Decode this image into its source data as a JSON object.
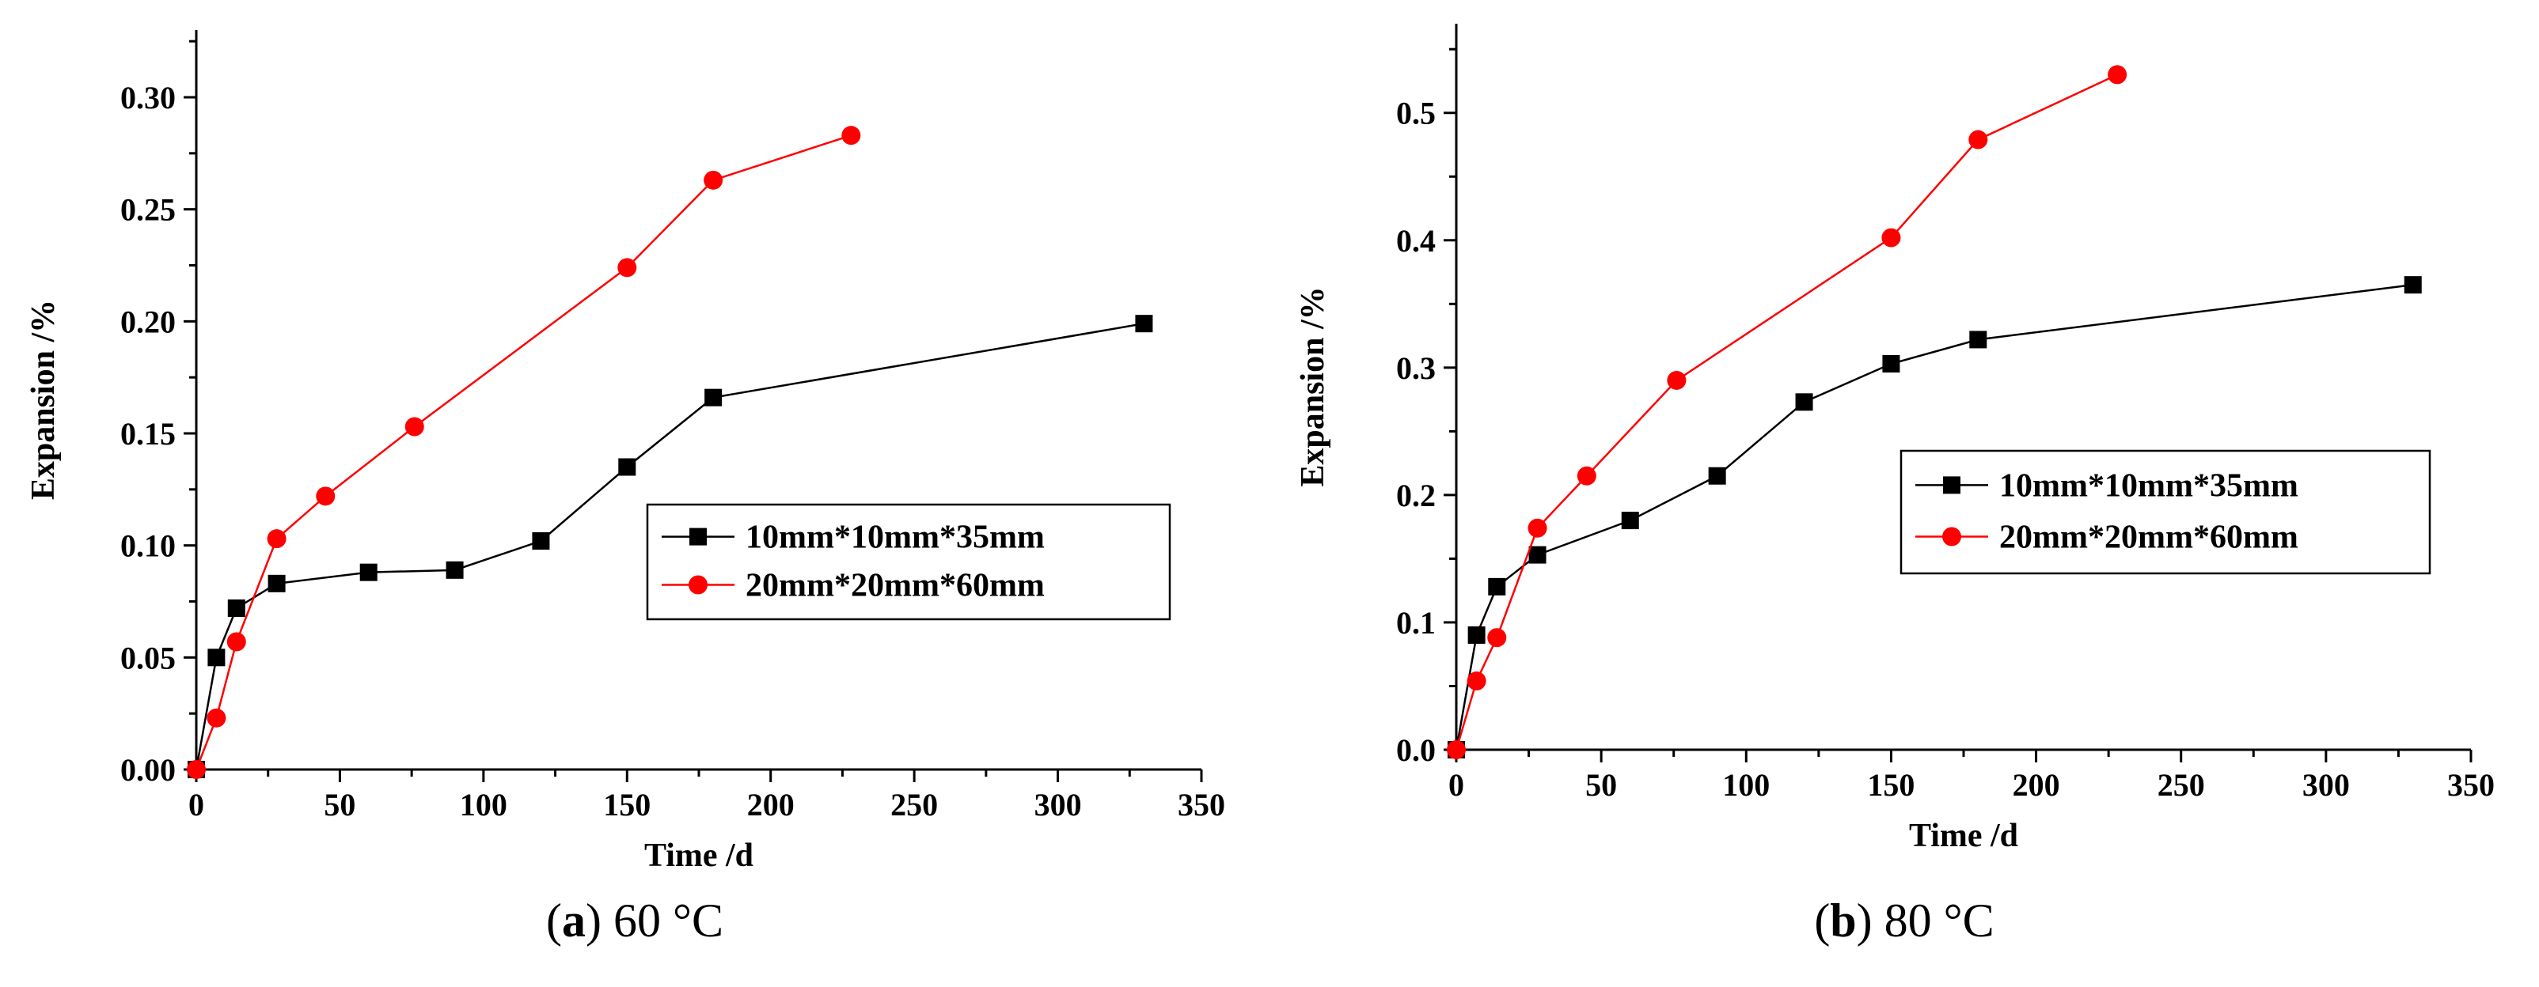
{
  "chart_data": [
    {
      "type": "line",
      "caption_letter": "a",
      "caption_rest": " 60 °C",
      "xlabel": "Time /d",
      "ylabel": "Expansion /%",
      "xlim": [
        0,
        350
      ],
      "ylim": [
        0,
        0.33
      ],
      "xticks": [
        0,
        50,
        100,
        150,
        200,
        250,
        300,
        350
      ],
      "xtick_labels": [
        "0",
        "50",
        "100",
        "150",
        "200",
        "250",
        "300",
        "350"
      ],
      "yticks": [
        0,
        0.05,
        0.1,
        0.15,
        0.2,
        0.25,
        0.3
      ],
      "ytick_labels": [
        "0.00",
        "0.05",
        "0.10",
        "0.15",
        "0.20",
        "0.25",
        "0.30"
      ],
      "grid": false,
      "legend_position": "center-right",
      "series": [
        {
          "name": "10mm*10mm*35mm",
          "color": "#000000",
          "marker": "square",
          "x": [
            0,
            7,
            14,
            28,
            60,
            90,
            120,
            150,
            180,
            330
          ],
          "y": [
            0,
            0.05,
            0.072,
            0.083,
            0.088,
            0.089,
            0.102,
            0.135,
            0.166,
            0.199
          ]
        },
        {
          "name": "20mm*20mm*60mm",
          "color": "#ff0000",
          "marker": "circle",
          "x": [
            0,
            7,
            14,
            28,
            45,
            76,
            150,
            180,
            228
          ],
          "y": [
            0,
            0.023,
            0.057,
            0.103,
            0.122,
            0.153,
            0.224,
            0.263,
            0.283
          ]
        }
      ]
    },
    {
      "type": "line",
      "caption_letter": "b",
      "caption_rest": " 80 °C",
      "xlabel": "Time /d",
      "ylabel": "Expansion /%",
      "xlim": [
        0,
        350
      ],
      "ylim": [
        0,
        0.57
      ],
      "xticks": [
        0,
        50,
        100,
        150,
        200,
        250,
        300,
        350
      ],
      "xtick_labels": [
        "0",
        "50",
        "100",
        "150",
        "200",
        "250",
        "300",
        "350"
      ],
      "yticks": [
        0,
        0.1,
        0.2,
        0.3,
        0.4,
        0.5
      ],
      "ytick_labels": [
        "0.0",
        "0.1",
        "0.2",
        "0.3",
        "0.4",
        "0.5"
      ],
      "grid": false,
      "legend_position": "center-right",
      "series": [
        {
          "name": "10mm*10mm*35mm",
          "color": "#000000",
          "marker": "square",
          "x": [
            0,
            7,
            14,
            28,
            60,
            90,
            120,
            150,
            180,
            330
          ],
          "y": [
            0,
            0.09,
            0.128,
            0.153,
            0.18,
            0.215,
            0.273,
            0.303,
            0.322,
            0.365
          ]
        },
        {
          "name": "20mm*20mm*60mm",
          "color": "#ff0000",
          "marker": "circle",
          "x": [
            0,
            7,
            14,
            28,
            45,
            76,
            150,
            180,
            228
          ],
          "y": [
            0,
            0.054,
            0.088,
            0.174,
            0.215,
            0.29,
            0.402,
            0.479,
            0.53
          ]
        }
      ]
    }
  ]
}
